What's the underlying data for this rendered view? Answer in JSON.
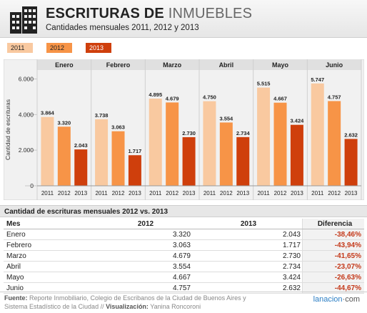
{
  "header": {
    "title_part1": "ESCRITURAS DE ",
    "title_part2": "INMUEBLES",
    "subtitle": "Cantidades mensuales 2011, 2012 y 2013"
  },
  "colors": {
    "s2011": "#f9c9a0",
    "s2012": "#f79447",
    "s2013": "#cf3f0c"
  },
  "chart_data": {
    "type": "bar",
    "categories": [
      "Enero",
      "Febrero",
      "Marzo",
      "Abril",
      "Mayo",
      "Junio"
    ],
    "series": [
      {
        "name": "2011",
        "values": [
          3864,
          3738,
          4895,
          4750,
          5515,
          5747
        ]
      },
      {
        "name": "2012",
        "values": [
          3320,
          3063,
          4679,
          3554,
          4667,
          4757
        ]
      },
      {
        "name": "2013",
        "values": [
          2043,
          1717,
          2730,
          2734,
          3424,
          2632
        ]
      }
    ],
    "value_labels": [
      [
        "3.864",
        "3.738",
        "4.895",
        "4.750",
        "5.515",
        "5.747"
      ],
      [
        "3.320",
        "3.063",
        "4.679",
        "3.554",
        "4.667",
        "4.757"
      ],
      [
        "2.043",
        "1.717",
        "2.730",
        "2.734",
        "3.424",
        "2.632"
      ]
    ],
    "ylabel": "Cantidad de escrituras",
    "yticks": [
      0,
      2000,
      4000,
      6000
    ],
    "ytick_labels": [
      "0",
      "2.000",
      "4.000",
      "6.000"
    ],
    "ylim": [
      0,
      6300
    ],
    "legend": "top-left"
  },
  "table": {
    "title": "Cantidad de escrituras mensuales 2012 vs. 2013",
    "headers": [
      "Mes",
      "2012",
      "2013",
      "Diferencia"
    ],
    "rows": [
      [
        "Enero",
        "3.320",
        "2.043",
        "-38,46%"
      ],
      [
        "Febrero",
        "3.063",
        "1.717",
        "-43,94%"
      ],
      [
        "Marzo",
        "4.679",
        "2.730",
        "-41,65%"
      ],
      [
        "Abril",
        "3.554",
        "2.734",
        "-23,07%"
      ],
      [
        "Mayo",
        "4.667",
        "3.424",
        "-26,63%"
      ],
      [
        "Junio",
        "4.757",
        "2.632",
        "-44,67%"
      ]
    ]
  },
  "footer": {
    "source_label": "Fuente:",
    "source_text": " Reporte Inmobiliario, Colegio de Escribanos de la Ciudad de Buenos Aires y",
    "source_text2": "Sistema Estadístico de la Ciudad // ",
    "viz_label": "Visualización:",
    "viz_text": " Yanina Roncoroni",
    "brand_a": "lanacion",
    "brand_b": "·com"
  }
}
